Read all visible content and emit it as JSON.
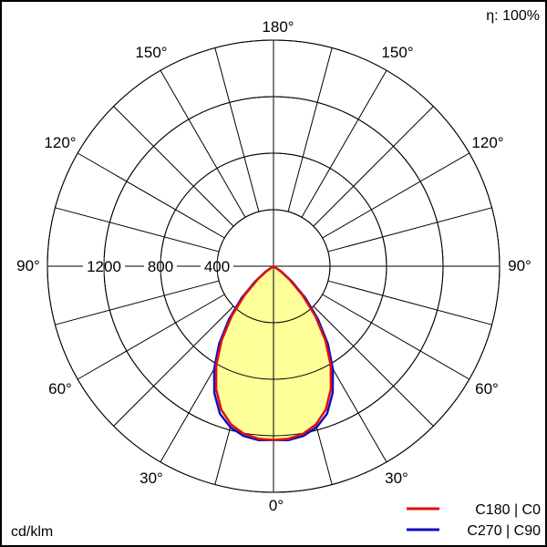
{
  "chart_data": {
    "type": "polar",
    "efficiency_label": "η: 100%",
    "unit_label": "cd/klm",
    "radial_ticks": [
      "400",
      "800",
      "1200"
    ],
    "radial_values": [
      400,
      800,
      1200
    ],
    "rmax": 1600,
    "angle_labels": {
      "top": "180°",
      "left": [
        "150°",
        "120°",
        "90°",
        "60°",
        "30°"
      ],
      "right": [
        "150°",
        "120°",
        "90°",
        "60°",
        "30°"
      ],
      "bottom": "0°"
    },
    "angles_deg": [
      0,
      5,
      10,
      15,
      20,
      25,
      30,
      35,
      40,
      45,
      50,
      55,
      60
    ],
    "series": [
      {
        "name": "C180 | C0",
        "color": "#e01010",
        "fill": "#ffff99",
        "values": [
          1230,
          1225,
          1205,
          1160,
          1080,
          960,
          810,
          640,
          460,
          290,
          150,
          60,
          0
        ]
      },
      {
        "name": "C270 | C90",
        "color": "#1010c0",
        "values": [
          1230,
          1235,
          1220,
          1180,
          1110,
          990,
          840,
          670,
          490,
          320,
          170,
          70,
          0
        ]
      }
    ]
  }
}
